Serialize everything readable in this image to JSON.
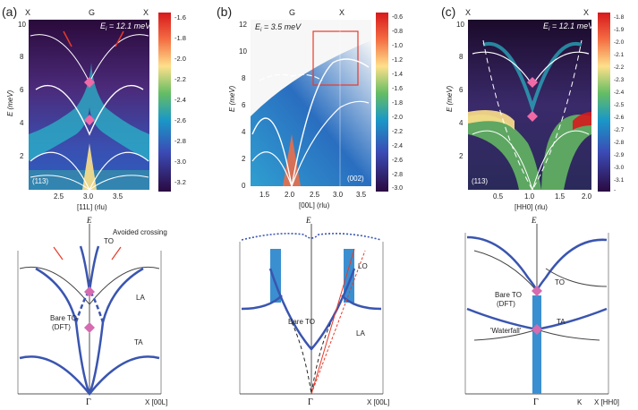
{
  "panels": [
    {
      "label": "(a)",
      "energy_label": "E",
      "energy_sub": "i",
      "energy_value": " = 12.1 meV",
      "top_ticks": [
        "X",
        "G",
        "X"
      ],
      "x_ticks": [
        "2.5",
        "3.0",
        "3.5"
      ],
      "y_ticks": [
        "2",
        "4",
        "6",
        "8",
        "10"
      ],
      "xlabel": "[11L] (rlu)",
      "ylabel": "E (meV)",
      "zone": "(113)",
      "colorbar": [
        "-1.6",
        "-1.8",
        "-2.0",
        "-2.2",
        "-2.4",
        "-2.6",
        "-2.8",
        "-3.0",
        "-3.2"
      ],
      "schematic": {
        "e_axis": "E",
        "gamma": "Γ",
        "x_axis": "X [00L]",
        "labels": {
          "to": "TO",
          "avoided": "Avoided crossing",
          "la": "LA",
          "ta": "TA",
          "bare_to": "Bare TO",
          "dft": "(DFT)"
        }
      }
    },
    {
      "label": "(b)",
      "energy_label": "E",
      "energy_sub": "i",
      "energy_value": " = 3.5 meV",
      "top_ticks": [
        "G",
        "X"
      ],
      "x_ticks": [
        "1.5",
        "2.0",
        "2.5",
        "3.0",
        "3.5"
      ],
      "y_ticks": [
        "0",
        "2",
        "4",
        "6",
        "8",
        "10",
        "12"
      ],
      "xlabel": "[00L] (rlu)",
      "ylabel": "E (meV)",
      "zone": "(002)",
      "colorbar": [
        "-0.6",
        "-0.8",
        "-1.0",
        "-1.2",
        "-1.4",
        "-1.6",
        "-1.8",
        "-2.0",
        "-2.2",
        "-2.4",
        "-2.6",
        "-2.8",
        "-3.0"
      ],
      "schematic": {
        "e_axis": "E",
        "gamma": "Γ",
        "x_axis": "X [00L]",
        "labels": {
          "lo": "LO",
          "bare_to": "Bare TO",
          "la": "LA"
        }
      }
    },
    {
      "label": "(c)",
      "energy_label": "E",
      "energy_sub": "i",
      "energy_value": " = 12.1 meV",
      "top_ticks": [
        "X",
        "X"
      ],
      "x_ticks": [
        "0.5",
        "1.0",
        "1.5",
        "2.0"
      ],
      "y_ticks": [
        "2",
        "4",
        "6",
        "8",
        "10"
      ],
      "xlabel": "[HH0] (rlu)",
      "ylabel": "E (meV)",
      "zone": "(113)",
      "colorbar": [
        "-1.8",
        "-1.9",
        "-2.0",
        "-2.1",
        "-2.2",
        "-2.3",
        "-2.4",
        "-2.5",
        "-2.6",
        "-2.7",
        "-2.8",
        "-2.9",
        "-3.0",
        "-3.1",
        "-"
      ],
      "schematic": {
        "e_axis": "E",
        "gamma": "Γ",
        "k": "K",
        "x_axis": "X [HH0]",
        "labels": {
          "to": "TO",
          "bare_to": "Bare TO",
          "dft": "(DFT)",
          "waterfall": "'Waterfall'",
          "ta": "TA"
        }
      }
    }
  ]
}
